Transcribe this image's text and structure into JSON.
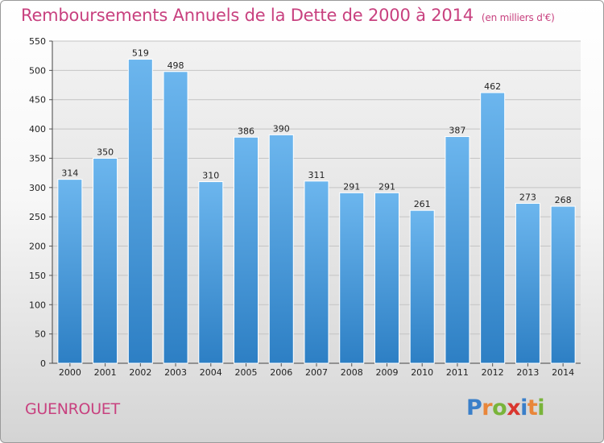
{
  "chart_data": {
    "type": "bar",
    "title": "Remboursements Annuels de la Dette de 2000 à 2014",
    "subtitle": "(en milliers d'€)",
    "categories": [
      "2000",
      "2001",
      "2002",
      "2003",
      "2004",
      "2005",
      "2006",
      "2007",
      "2008",
      "2009",
      "2010",
      "2011",
      "2012",
      "2013",
      "2014"
    ],
    "values": [
      314,
      350,
      519,
      498,
      310,
      386,
      390,
      311,
      291,
      291,
      261,
      387,
      462,
      273,
      268
    ],
    "yticks": [
      0,
      50,
      100,
      150,
      200,
      250,
      300,
      350,
      400,
      450,
      500,
      550
    ],
    "ylim": [
      0,
      550
    ],
    "xlabel": "",
    "ylabel": "",
    "grid": true,
    "bar_color": "#3f8fd6",
    "title_color": "#c8417f"
  },
  "footer": {
    "commune": "GUENROUET",
    "logo_letters": [
      {
        "ch": "P",
        "color": "#3a7fc9"
      },
      {
        "ch": "r",
        "color": "#e9863a"
      },
      {
        "ch": "o",
        "color": "#79b43a"
      },
      {
        "ch": "x",
        "color": "#d9362f"
      },
      {
        "ch": "i",
        "color": "#3a7fc9"
      },
      {
        "ch": "t",
        "color": "#e9863a"
      },
      {
        "ch": "i",
        "color": "#79b43a"
      }
    ]
  }
}
